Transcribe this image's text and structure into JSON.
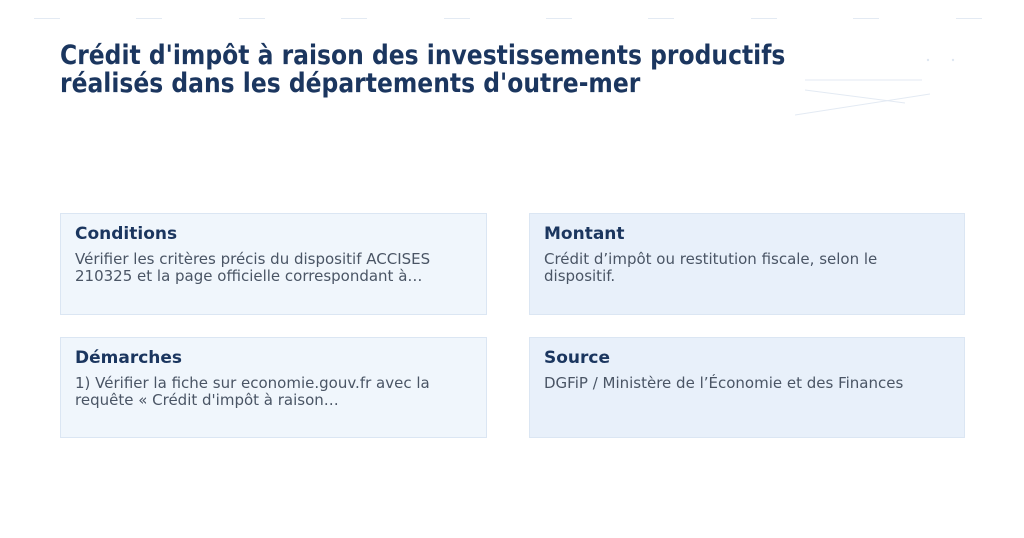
{
  "title": {
    "line1": "Crédit d'impôt à raison des investissements productifs",
    "line2": "réalisés dans les départements d'outre-mer"
  },
  "cards": [
    {
      "heading": "Conditions",
      "text": "Vérifier les critères précis du dispositif ACCISES 210325 et la page officielle correspondant à…"
    },
    {
      "heading": "Montant",
      "text": "Crédit d’impôt ou restitution fiscale, selon le dispositif."
    },
    {
      "heading": "Démarches",
      "text": "1) Vérifier la fiche sur economie.gouv.fr avec la requête « Crédit d'impôt à raison…"
    },
    {
      "heading": "Source",
      "text": "DGFiP / Ministère de l’Économie et des Finances"
    }
  ],
  "colors": {
    "heading": "#1b365f",
    "text": "#4a5565",
    "card_left_bg": "#f0f6fc",
    "card_right_bg": "#e8f0fa"
  }
}
